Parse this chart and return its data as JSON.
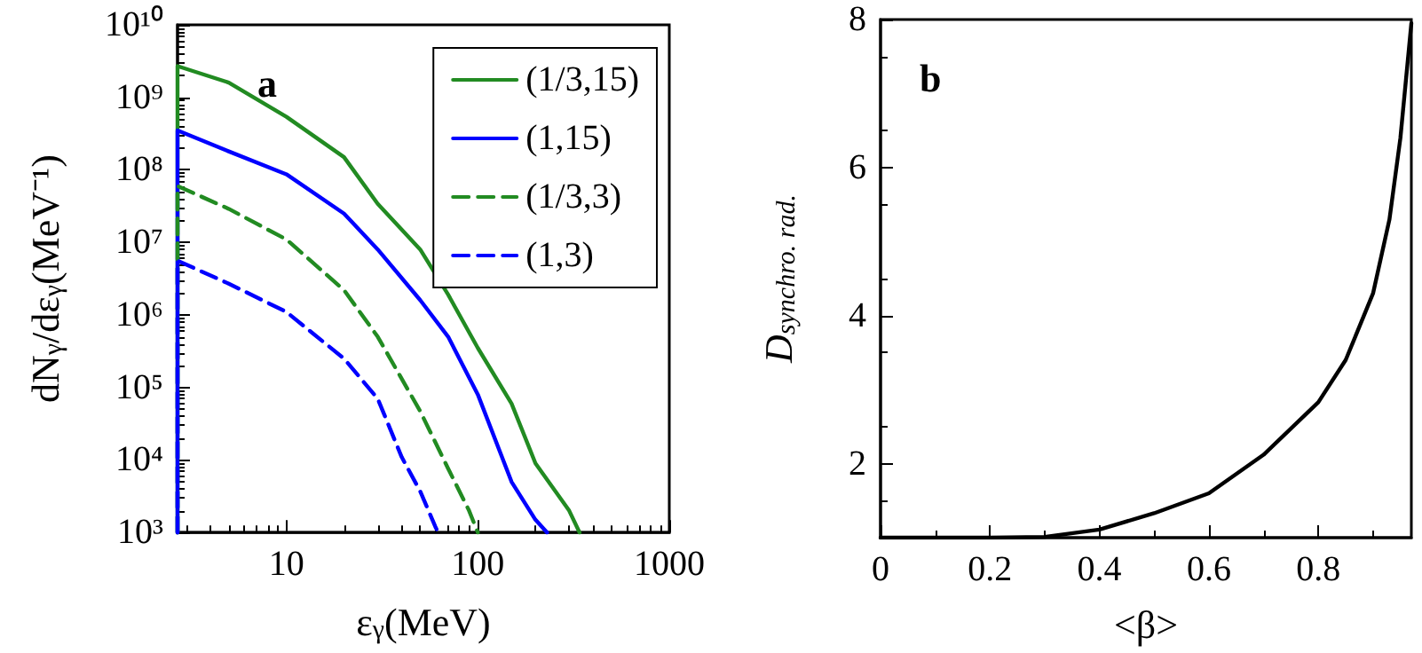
{
  "chart_data": [
    {
      "type": "line",
      "xlabel": "ε$_{γ}$(MeV)",
      "ylabel": "dN$_{γ}$/dε$_{γ}$(MeV⁻¹)",
      "annotations": [
        "a"
      ],
      "log": "xy",
      "xlim": [
        2.7,
        1000
      ],
      "ylim": [
        1000,
        10000000000
      ],
      "xticks": [
        10,
        100,
        1000
      ],
      "yticks": [
        {
          "value": 1000,
          "label": "10³"
        },
        {
          "value": 10000,
          "label": "10⁴"
        },
        {
          "value": 100000,
          "label": "10⁵"
        },
        {
          "value": 1000000,
          "label": "10⁶"
        },
        {
          "value": 10000000,
          "label": "10⁷"
        },
        {
          "value": 100000000,
          "label": "10⁸"
        },
        {
          "value": 1000000000,
          "label": "10⁹"
        },
        {
          "value": 10000000000,
          "label": "10¹⁰"
        }
      ],
      "grid": false,
      "legend": "top right",
      "marker": "none",
      "series": [
        {
          "name": "(1/3,15)",
          "color": "#228b22",
          "line_style": "solid",
          "x": [
            2.7,
            2.7,
            5,
            10,
            20,
            30,
            50,
            70,
            100,
            150,
            200,
            300,
            340
          ],
          "values": [
            1000,
            2700000000,
            1600000000,
            540000000,
            150000000,
            34000000,
            8000000,
            1900000,
            350000,
            60000,
            9000,
            2000,
            1000
          ]
        },
        {
          "name": "(1,15)",
          "color": "#0000ff",
          "line_style": "solid",
          "x": [
            2.7,
            2.7,
            5,
            10,
            20,
            30,
            50,
            70,
            100,
            150,
            200,
            230
          ],
          "values": [
            1000,
            350000000,
            180000000,
            87000000,
            25000000,
            8000000,
            1600000,
            500000,
            80000,
            5000,
            1500,
            1000
          ]
        },
        {
          "name": "(1/3,3)",
          "color": "#228b22",
          "line_style": "dashed",
          "x": [
            2.7,
            2.7,
            5,
            10,
            20,
            30,
            50,
            70,
            90,
            100
          ],
          "values": [
            1000,
            60000000,
            29000000,
            11000000,
            2200000,
            500000,
            47000,
            7600,
            2000,
            1000
          ]
        },
        {
          "name": "(1,3)",
          "color": "#0000ff",
          "line_style": "dashed",
          "x": [
            2.7,
            2.7,
            5,
            10,
            20,
            30,
            40,
            50,
            60,
            62
          ],
          "values": [
            1000,
            5600000,
            2700000,
            1100000,
            250000,
            70000,
            11000,
            3700,
            1200,
            1000
          ]
        }
      ]
    },
    {
      "type": "line",
      "xlabel": "<β>",
      "ylabel": "D$_{synchro. rad.}$",
      "annotations": [
        "b"
      ],
      "xlim": [
        0,
        0.97
      ],
      "ylim": [
        1,
        8
      ],
      "xticks": [
        0,
        0.2,
        0.4,
        0.6,
        0.8
      ],
      "yticks": [
        2,
        4,
        6,
        8
      ],
      "grid": false,
      "marker": "none",
      "series": [
        {
          "color": "#000000",
          "line_style": "solid",
          "x": [
            0,
            0.1,
            0.2,
            0.3,
            0.4,
            0.5,
            0.6,
            0.7,
            0.8,
            0.85,
            0.9,
            0.93,
            0.95,
            0.97
          ],
          "values": [
            1,
            1,
            1,
            1.01,
            1.11,
            1.33,
            1.6,
            2.12,
            2.83,
            3.4,
            4.3,
            5.3,
            6.4,
            7.95
          ]
        }
      ]
    }
  ]
}
